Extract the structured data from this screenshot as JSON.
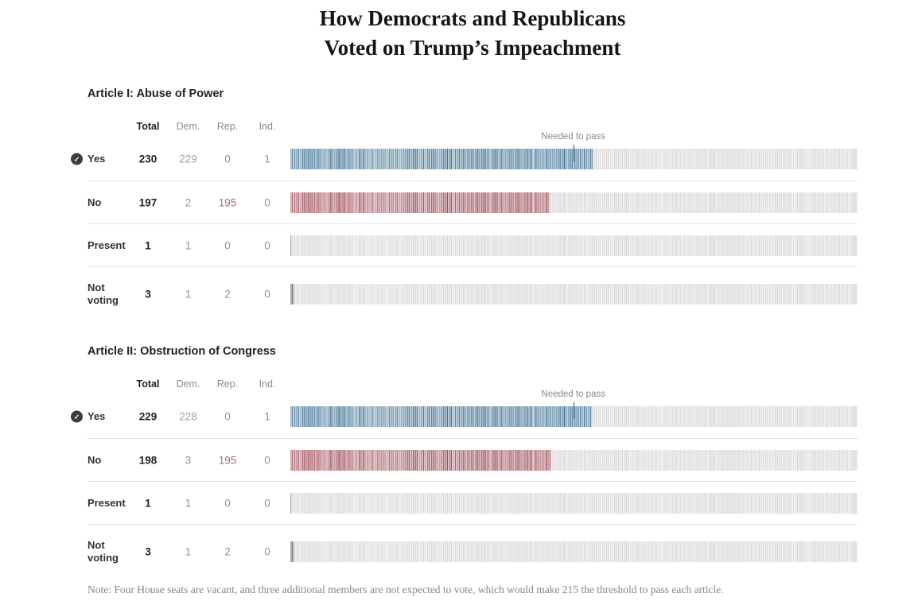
{
  "title": {
    "line1": "How Democrats and Republicans",
    "line2": "Voted on Trump’s Impeachment"
  },
  "columns": {
    "total": "Total",
    "dem": "Dem.",
    "rep": "Rep.",
    "ind": "Ind."
  },
  "threshold": {
    "label": "Needed to pass",
    "seats": 215
  },
  "bar": {
    "total_ticks": 431
  },
  "colors": {
    "tick_dem": "#32688c",
    "tick_rep": "#98404d",
    "tick_neutral": "#474747",
    "tick_rest": "#cbcbcb",
    "text_dem": "#8aa4bc",
    "text_rep": "#ab6a74",
    "text_muted": "#9a9190",
    "marker": "#4d4d4d"
  },
  "articles": [
    {
      "heading": "Article I: Abuse of Power",
      "rows": [
        {
          "id": "yes",
          "label": "Yes",
          "checked": true,
          "marker": true,
          "bar": {
            "count": 230,
            "color": "dem"
          },
          "values": {
            "total": {
              "v": "230",
              "tone": "total"
            },
            "dem": {
              "v": "229",
              "tone": "dem"
            },
            "rep": {
              "v": "0",
              "tone": "muted"
            },
            "ind": {
              "v": "1",
              "tone": "muted"
            }
          }
        },
        {
          "id": "no",
          "label": "No",
          "checked": false,
          "marker": false,
          "bar": {
            "count": 197,
            "color": "rep"
          },
          "values": {
            "total": {
              "v": "197",
              "tone": "total"
            },
            "dem": {
              "v": "2",
              "tone": "muted"
            },
            "rep": {
              "v": "195",
              "tone": "rep"
            },
            "ind": {
              "v": "0",
              "tone": "muted"
            }
          }
        },
        {
          "id": "present",
          "label": "Present",
          "checked": false,
          "marker": false,
          "bar": {
            "count": 1,
            "color": "neutral"
          },
          "values": {
            "total": {
              "v": "1",
              "tone": "total"
            },
            "dem": {
              "v": "1",
              "tone": "muted"
            },
            "rep": {
              "v": "0",
              "tone": "muted"
            },
            "ind": {
              "v": "0",
              "tone": "muted"
            }
          }
        },
        {
          "id": "not-voting",
          "label": "Not voting",
          "checked": false,
          "marker": false,
          "bar": {
            "count": 3,
            "color": "neutral"
          },
          "values": {
            "total": {
              "v": "3",
              "tone": "total"
            },
            "dem": {
              "v": "1",
              "tone": "muted"
            },
            "rep": {
              "v": "2",
              "tone": "muted"
            },
            "ind": {
              "v": "0",
              "tone": "muted"
            }
          }
        }
      ]
    },
    {
      "heading": "Article II: Obstruction of Congress",
      "rows": [
        {
          "id": "yes",
          "label": "Yes",
          "checked": true,
          "marker": true,
          "bar": {
            "count": 229,
            "color": "dem"
          },
          "values": {
            "total": {
              "v": "229",
              "tone": "total"
            },
            "dem": {
              "v": "228",
              "tone": "dem"
            },
            "rep": {
              "v": "0",
              "tone": "muted"
            },
            "ind": {
              "v": "1",
              "tone": "muted"
            }
          }
        },
        {
          "id": "no",
          "label": "No",
          "checked": false,
          "marker": false,
          "bar": {
            "count": 198,
            "color": "rep"
          },
          "values": {
            "total": {
              "v": "198",
              "tone": "total"
            },
            "dem": {
              "v": "3",
              "tone": "muted"
            },
            "rep": {
              "v": "195",
              "tone": "rep"
            },
            "ind": {
              "v": "0",
              "tone": "muted"
            }
          }
        },
        {
          "id": "present",
          "label": "Present",
          "checked": false,
          "marker": false,
          "bar": {
            "count": 1,
            "color": "neutral"
          },
          "values": {
            "total": {
              "v": "1",
              "tone": "total"
            },
            "dem": {
              "v": "1",
              "tone": "muted"
            },
            "rep": {
              "v": "0",
              "tone": "muted"
            },
            "ind": {
              "v": "0",
              "tone": "muted"
            }
          }
        },
        {
          "id": "not-voting",
          "label": "Not voting",
          "checked": false,
          "marker": false,
          "bar": {
            "count": 3,
            "color": "neutral"
          },
          "values": {
            "total": {
              "v": "3",
              "tone": "total"
            },
            "dem": {
              "v": "1",
              "tone": "muted"
            },
            "rep": {
              "v": "2",
              "tone": "muted"
            },
            "ind": {
              "v": "0",
              "tone": "muted"
            }
          }
        }
      ]
    }
  ],
  "note": "Note: Four House seats are vacant, and three additional members are not expected to vote, which would make 215 the threshold to pass each article.",
  "chart_data": [
    {
      "type": "bar",
      "title": "Article I: Abuse of Power",
      "categories": [
        "Yes",
        "No",
        "Present",
        "Not voting"
      ],
      "series": [
        {
          "name": "Total",
          "values": [
            230,
            197,
            1,
            3
          ]
        },
        {
          "name": "Dem.",
          "values": [
            229,
            2,
            1,
            1
          ]
        },
        {
          "name": "Rep.",
          "values": [
            0,
            195,
            0,
            2
          ]
        },
        {
          "name": "Ind.",
          "values": [
            1,
            0,
            0,
            0
          ]
        }
      ],
      "xlim": [
        0,
        431
      ],
      "annotations": [
        {
          "label": "Needed to pass",
          "x": 215,
          "row": "Yes"
        }
      ],
      "legend": "none",
      "style": "tick-barcode; one tick per non-vacant House seat (431 per row); colored ticks = votes cast for that option"
    },
    {
      "type": "bar",
      "title": "Article II: Obstruction of Congress",
      "categories": [
        "Yes",
        "No",
        "Present",
        "Not voting"
      ],
      "series": [
        {
          "name": "Total",
          "values": [
            229,
            198,
            1,
            3
          ]
        },
        {
          "name": "Dem.",
          "values": [
            228,
            3,
            1,
            1
          ]
        },
        {
          "name": "Rep.",
          "values": [
            0,
            195,
            0,
            2
          ]
        },
        {
          "name": "Ind.",
          "values": [
            1,
            0,
            0,
            0
          ]
        }
      ],
      "xlim": [
        0,
        431
      ],
      "annotations": [
        {
          "label": "Needed to pass",
          "x": 215,
          "row": "Yes"
        }
      ],
      "legend": "none",
      "style": "tick-barcode; one tick per non-vacant House seat (431 per row); colored ticks = votes cast for that option"
    }
  ]
}
